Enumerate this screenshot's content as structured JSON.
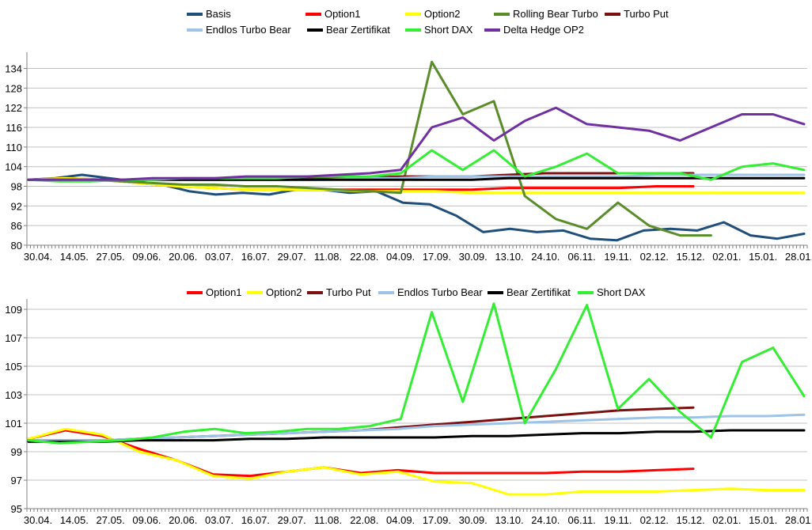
{
  "chart_data": [
    {
      "type": "line",
      "title": "",
      "xlabel": "",
      "ylabel": "",
      "ylim": [
        80,
        138
      ],
      "yticks": [
        80,
        86,
        92,
        98,
        104,
        110,
        116,
        122,
        128,
        134
      ],
      "grid": true,
      "legend": "top",
      "xticklabels": [
        "30.04.",
        "14.05.",
        "27.05.",
        "09.06.",
        "20.06.",
        "03.07.",
        "16.07.",
        "29.07.",
        "11.08.",
        "22.08.",
        "04.09.",
        "17.09.",
        "30.09.",
        "13.10.",
        "24.10.",
        "06.11.",
        "19.11.",
        "02.12.",
        "15.12.",
        "02.01.",
        "15.01.",
        "28.01."
      ],
      "series": [
        {
          "name": "Basis",
          "color": "#1f4e79",
          "values": [
            100,
            100.5,
            101.5,
            100.5,
            99.5,
            98.5,
            96.5,
            95.5,
            96,
            95.5,
            97,
            97,
            96,
            96.5,
            93,
            92.5,
            89,
            84,
            85,
            84,
            84.5,
            82,
            81.5,
            84.5,
            85,
            84.5,
            87,
            83,
            82,
            83.5
          ]
        },
        {
          "name": "Option1",
          "color": "#ff0000",
          "values": [
            100,
            100.5,
            100,
            99,
            98,
            97.5,
            97,
            97,
            97,
            97,
            97,
            97,
            97,
            97.5,
            97.5,
            97.5,
            97.5,
            98,
            98,
            null,
            null,
            null
          ]
        },
        {
          "name": "Option2",
          "color": "#ffff00",
          "values": [
            100,
            100.5,
            100,
            99,
            98,
            97.5,
            97,
            97,
            97,
            96.5,
            96.5,
            96.5,
            96,
            96,
            96,
            96,
            96,
            96,
            96,
            96,
            96,
            96
          ]
        },
        {
          "name": "Rolling Bear Turbo",
          "color": "#5b8c2a",
          "values": [
            100,
            100,
            100,
            99.5,
            99,
            98.5,
            98.5,
            98,
            98,
            97.5,
            97,
            96.5,
            96,
            136,
            120,
            124,
            95,
            88,
            85,
            93,
            86,
            83,
            83,
            null,
            null,
            null
          ]
        },
        {
          "name": "Turbo Put",
          "color": "#7b1010",
          "values": [
            100,
            100,
            100,
            100,
            100,
            100,
            100,
            100,
            100.5,
            100.5,
            101,
            101,
            101,
            101.5,
            102,
            102,
            102,
            102,
            102,
            null,
            null,
            null
          ]
        },
        {
          "name": "Endlos Turbo Bear",
          "color": "#9dc3e6",
          "values": [
            100,
            100,
            100,
            100,
            100,
            100,
            100,
            100,
            100,
            100.5,
            100.5,
            101,
            101,
            101,
            101,
            101,
            101,
            101.5,
            101.5,
            101.5,
            101.5,
            101.5
          ]
        },
        {
          "name": "Bear Zertifikat",
          "color": "#000000",
          "values": [
            100,
            100,
            100,
            100,
            100,
            100,
            100,
            100,
            100,
            100,
            100,
            100,
            100,
            100.5,
            100.5,
            100.5,
            100.5,
            100.5,
            100.5,
            100.5,
            100.5,
            100.5
          ]
        },
        {
          "name": "Short DAX",
          "color": "#33ee33",
          "values": [
            100,
            99.5,
            99.5,
            100,
            100,
            100.5,
            100.5,
            100.5,
            100.5,
            101,
            101,
            101,
            102,
            109,
            103,
            109,
            101,
            104,
            108,
            102,
            102,
            102,
            100,
            104,
            105,
            103
          ]
        },
        {
          "name": "Delta Hedge OP2",
          "color": "#7030a0",
          "values": [
            100,
            100,
            100,
            100,
            100.5,
            100.5,
            100.5,
            101,
            101,
            101,
            101.5,
            102,
            103,
            116,
            119,
            112,
            118,
            122,
            117,
            116,
            115,
            112,
            116,
            120,
            120,
            117
          ]
        }
      ]
    },
    {
      "type": "line",
      "title": "",
      "xlabel": "",
      "ylabel": "",
      "ylim": [
        95,
        109.5
      ],
      "yticks": [
        95,
        97,
        99,
        101,
        103,
        105,
        107,
        109
      ],
      "grid": true,
      "legend": "top",
      "xticklabels": [
        "30.04.",
        "14.05.",
        "27.05.",
        "09.06.",
        "20.06.",
        "03.07.",
        "16.07.",
        "29.07.",
        "11.08.",
        "22.08.",
        "04.09.",
        "17.09.",
        "30.09.",
        "13.10.",
        "24.10.",
        "06.11.",
        "19.11.",
        "02.12.",
        "15.12.",
        "02.01.",
        "15.01.",
        "28.01."
      ],
      "series": [
        {
          "name": "Option1",
          "color": "#ff0000",
          "values": [
            99.9,
            100.5,
            100.1,
            99.2,
            98.4,
            97.4,
            97.3,
            97.6,
            97.9,
            97.5,
            97.7,
            97.5,
            97.5,
            97.5,
            97.5,
            97.6,
            97.6,
            97.7,
            97.8,
            null,
            null,
            null
          ]
        },
        {
          "name": "Option2",
          "color": "#ffff00",
          "values": [
            99.9,
            100.6,
            100.2,
            99,
            98.4,
            97.3,
            97.1,
            97.6,
            97.9,
            97.4,
            97.6,
            96.9,
            96.8,
            96,
            96,
            96.2,
            96.2,
            96.2,
            96.3,
            96.4,
            96.3,
            96.3
          ]
        },
        {
          "name": "Turbo Put",
          "color": "#7b1010",
          "values": [
            99.8,
            99.8,
            99.8,
            99.9,
            100,
            100.1,
            100.2,
            100.3,
            100.4,
            100.5,
            100.7,
            100.9,
            101.1,
            101.3,
            101.5,
            101.7,
            101.9,
            102,
            102.1,
            null,
            null,
            null
          ]
        },
        {
          "name": "Endlos Turbo Bear",
          "color": "#9dc3e6",
          "values": [
            99.8,
            99.8,
            99.8,
            99.9,
            100,
            100.1,
            100.2,
            100.3,
            100.4,
            100.5,
            100.6,
            100.8,
            100.9,
            101,
            101.1,
            101.2,
            101.3,
            101.4,
            101.4,
            101.5,
            101.5,
            101.6
          ]
        },
        {
          "name": "Bear Zertifikat",
          "color": "#000000",
          "values": [
            99.7,
            99.7,
            99.7,
            99.8,
            99.8,
            99.8,
            99.9,
            99.9,
            100,
            100,
            100,
            100,
            100.1,
            100.1,
            100.2,
            100.3,
            100.3,
            100.4,
            100.4,
            100.5,
            100.5,
            100.5
          ]
        },
        {
          "name": "Short DAX",
          "color": "#33ee33",
          "values": [
            99.8,
            99.6,
            99.7,
            99.8,
            100,
            100.4,
            100.6,
            100.3,
            100.4,
            100.6,
            100.6,
            100.8,
            101.3,
            108.8,
            102.5,
            109.4,
            101,
            104.8,
            109.3,
            102,
            104.1,
            101.8,
            100,
            105.3,
            106.3,
            102.9
          ]
        }
      ]
    }
  ]
}
